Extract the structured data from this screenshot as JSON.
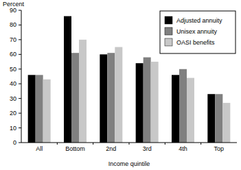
{
  "chart_data": {
    "type": "bar",
    "y_label": "Percent",
    "x_label": "Income quintile",
    "categories": [
      "All",
      "Bottom",
      "2nd",
      "3rd",
      "4th",
      "Top"
    ],
    "series": [
      {
        "name": "Adjusted annuity",
        "color": "#000000",
        "values": [
          46,
          86,
          60,
          54,
          46,
          33
        ]
      },
      {
        "name": "Unisex annuity",
        "color": "#808080",
        "values": [
          46,
          61,
          61,
          58,
          50,
          33
        ]
      },
      {
        "name": "OASI benefits",
        "color": "#c8c8c8",
        "values": [
          43,
          70,
          65,
          55,
          44,
          27
        ]
      }
    ],
    "ylim": [
      0,
      90
    ],
    "yticks": [
      0,
      10,
      20,
      30,
      40,
      50,
      60,
      70,
      80,
      90
    ],
    "grid": false,
    "legend": "upper right"
  }
}
